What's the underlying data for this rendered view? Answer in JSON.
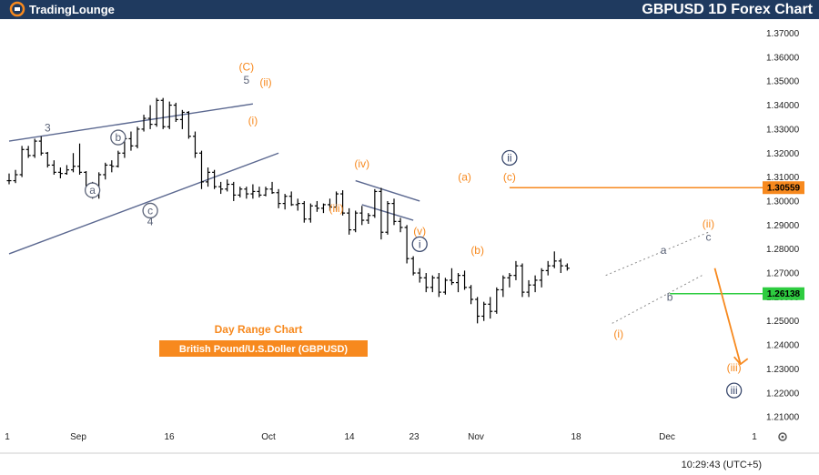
{
  "header": {
    "logo_text": "TradingLounge",
    "title": "GBPUSD 1D Forex Chart"
  },
  "labels": {
    "chart_subtitle": "Day Range Chart",
    "instrument_badge": "British Pound/U.S.Doller (GBPUSD)"
  },
  "footer": {
    "clock": "10:29:43 (UTC+5)",
    "settings_icon": "gear-icon"
  },
  "colors": {
    "header_bg": "#1f3a5f",
    "orange": "#f7891e",
    "green": "#2ecc40",
    "gray_wave": "#5b6378",
    "channel": "#5b6890",
    "candle": "#000000"
  },
  "chart_data": {
    "type": "ohlc",
    "y_ticks": [
      "1.37000",
      "1.36000",
      "1.35000",
      "1.34000",
      "1.33000",
      "1.32000",
      "1.31000",
      "1.30000",
      "1.29000",
      "1.28000",
      "1.27000",
      "1.26000",
      "1.25000",
      "1.24000",
      "1.23000",
      "1.22000",
      "1.21000"
    ],
    "ylim": [
      1.2055,
      1.3755
    ],
    "x_ticks": [
      "1",
      "Sep",
      "16",
      "Oct",
      "14",
      "23",
      "Nov",
      "18",
      "Dec",
      "1"
    ],
    "price_levels": [
      {
        "name": "resistance",
        "value": "1.30559",
        "color": "#f7891e"
      },
      {
        "name": "support",
        "value": "1.26138",
        "color": "#2ecc40"
      }
    ],
    "series": [
      {
        "name": "",
        "ohlc": [
          [
            1.3085,
            1.3115,
            1.307,
            1.3085
          ],
          [
            1.3085,
            1.313,
            1.3075,
            1.311
          ],
          [
            1.311,
            1.323,
            1.31,
            1.3215
          ],
          [
            1.3215,
            1.323,
            1.318,
            1.319
          ],
          [
            1.319,
            1.326,
            1.318,
            1.325
          ],
          [
            1.325,
            1.327,
            1.319,
            1.32
          ],
          [
            1.32,
            1.3205,
            1.314,
            1.315
          ],
          [
            1.315,
            1.317,
            1.311,
            1.312
          ],
          [
            1.312,
            1.314,
            1.3095,
            1.3115
          ],
          [
            1.3115,
            1.315,
            1.311,
            1.313
          ],
          [
            1.313,
            1.32,
            1.312,
            1.3145
          ],
          [
            1.3145,
            1.324,
            1.311,
            1.312
          ],
          [
            1.312,
            1.3125,
            1.305,
            1.306
          ],
          [
            1.306,
            1.308,
            1.301,
            1.3035
          ],
          [
            1.3035,
            1.312,
            1.301,
            1.311
          ],
          [
            1.311,
            1.316,
            1.309,
            1.315
          ],
          [
            1.315,
            1.317,
            1.312,
            1.3145
          ],
          [
            1.3145,
            1.321,
            1.314,
            1.32
          ],
          [
            1.32,
            1.328,
            1.318,
            1.326
          ],
          [
            1.326,
            1.329,
            1.321,
            1.323
          ],
          [
            1.323,
            1.331,
            1.322,
            1.33
          ],
          [
            1.33,
            1.336,
            1.329,
            1.3345
          ],
          [
            1.3345,
            1.34,
            1.33,
            1.332
          ],
          [
            1.332,
            1.343,
            1.331,
            1.342
          ],
          [
            1.342,
            1.343,
            1.33,
            1.331
          ],
          [
            1.331,
            1.3415,
            1.33,
            1.34
          ],
          [
            1.34,
            1.341,
            1.333,
            1.334
          ],
          [
            1.334,
            1.338,
            1.33,
            1.337
          ],
          [
            1.337,
            1.3375,
            1.326,
            1.327
          ],
          [
            1.327,
            1.329,
            1.318,
            1.32
          ],
          [
            1.32,
            1.321,
            1.305,
            1.308
          ],
          [
            1.308,
            1.314,
            1.306,
            1.312
          ],
          [
            1.312,
            1.313,
            1.305,
            1.306
          ],
          [
            1.306,
            1.308,
            1.303,
            1.305
          ],
          [
            1.305,
            1.309,
            1.304,
            1.307
          ],
          [
            1.307,
            1.308,
            1.3,
            1.3025
          ],
          [
            1.3025,
            1.306,
            1.3015,
            1.305
          ],
          [
            1.305,
            1.306,
            1.301,
            1.303
          ],
          [
            1.303,
            1.307,
            1.301,
            1.304
          ],
          [
            1.304,
            1.306,
            1.3015,
            1.3025
          ],
          [
            1.3025,
            1.306,
            1.302,
            1.305
          ],
          [
            1.305,
            1.308,
            1.303,
            1.3035
          ],
          [
            1.3035,
            1.305,
            1.297,
            1.299
          ],
          [
            1.299,
            1.303,
            1.2965,
            1.302
          ],
          [
            1.302,
            1.304,
            1.298,
            1.2985
          ],
          [
            1.2985,
            1.301,
            1.296,
            1.299
          ],
          [
            1.299,
            1.3,
            1.291,
            1.2925
          ],
          [
            1.2925,
            1.299,
            1.291,
            1.298
          ],
          [
            1.298,
            1.3,
            1.2955,
            1.297
          ],
          [
            1.297,
            1.299,
            1.295,
            1.2985
          ],
          [
            1.2985,
            1.301,
            1.296,
            1.2975
          ],
          [
            1.2975,
            1.304,
            1.296,
            1.303
          ],
          [
            1.303,
            1.3045,
            1.294,
            1.295
          ],
          [
            1.295,
            1.297,
            1.286,
            1.288
          ],
          [
            1.288,
            1.296,
            1.287,
            1.295
          ],
          [
            1.295,
            1.298,
            1.29,
            1.292
          ],
          [
            1.292,
            1.295,
            1.2905,
            1.294
          ],
          [
            1.294,
            1.305,
            1.293,
            1.304
          ],
          [
            1.304,
            1.3055,
            1.284,
            1.287
          ],
          [
            1.287,
            1.3,
            1.286,
            1.299
          ],
          [
            1.299,
            1.301,
            1.29,
            1.2915
          ],
          [
            1.2915,
            1.293,
            1.287,
            1.289
          ],
          [
            1.289,
            1.29,
            1.274,
            1.276
          ],
          [
            1.276,
            1.277,
            1.269,
            1.27
          ],
          [
            1.27,
            1.272,
            1.266,
            1.268
          ],
          [
            1.268,
            1.27,
            1.262,
            1.264
          ],
          [
            1.264,
            1.269,
            1.262,
            1.268
          ],
          [
            1.268,
            1.27,
            1.26,
            1.262
          ],
          [
            1.262,
            1.268,
            1.261,
            1.267
          ],
          [
            1.267,
            1.272,
            1.265,
            1.266
          ],
          [
            1.266,
            1.27,
            1.262,
            1.269
          ],
          [
            1.269,
            1.271,
            1.263,
            1.264
          ],
          [
            1.264,
            1.265,
            1.257,
            1.259
          ],
          [
            1.259,
            1.26,
            1.249,
            1.252
          ],
          [
            1.252,
            1.258,
            1.25,
            1.257
          ],
          [
            1.257,
            1.26,
            1.251,
            1.254
          ],
          [
            1.254,
            1.264,
            1.253,
            1.263
          ],
          [
            1.263,
            1.269,
            1.26,
            1.268
          ],
          [
            1.268,
            1.27,
            1.264,
            1.269
          ],
          [
            1.269,
            1.275,
            1.267,
            1.273
          ],
          [
            1.273,
            1.274,
            1.26,
            1.262
          ],
          [
            1.262,
            1.267,
            1.26,
            1.265
          ],
          [
            1.265,
            1.269,
            1.262,
            1.267
          ],
          [
            1.267,
            1.272,
            1.264,
            1.271
          ],
          [
            1.271,
            1.275,
            1.269,
            1.273
          ],
          [
            1.273,
            1.279,
            1.272,
            1.275
          ],
          [
            1.275,
            1.276,
            1.27,
            1.273
          ],
          [
            1.273,
            1.274,
            1.271,
            1.272
          ]
        ]
      }
    ],
    "trendlines": [
      {
        "name": "upper-channel-line",
        "points": [
          [
            0,
            1.325
          ],
          [
            38,
            1.3405
          ]
        ],
        "color": "#5b6890"
      },
      {
        "name": "lower-channel-line",
        "points": [
          [
            0,
            1.278
          ],
          [
            42,
            1.32
          ]
        ],
        "color": "#5b6890"
      },
      {
        "name": "triangle-upper-line",
        "points": [
          [
            54,
            1.3085
          ],
          [
            64,
            1.3
          ]
        ],
        "color": "#5b6890"
      },
      {
        "name": "triangle-lower-line",
        "points": [
          [
            55,
            1.2985
          ],
          [
            63,
            1.292
          ]
        ],
        "color": "#5b6890"
      },
      {
        "name": "mini-channel-upper-dotted",
        "points": [
          [
            93,
            1.269
          ],
          [
            109,
            1.287
          ]
        ],
        "color": "#8a8a8a"
      },
      {
        "name": "mini-channel-lower-dotted",
        "points": [
          [
            94,
            1.249
          ],
          [
            108,
            1.269
          ]
        ],
        "color": "#8a8a8a"
      }
    ],
    "projection": {
      "name": "projection-arrow",
      "points": [
        [
          110,
          1.272
        ],
        [
          114,
          1.232
        ]
      ],
      "color": "#f7891e"
    },
    "wave_labels": [
      {
        "text": "3",
        "i": 6,
        "price": 1.329,
        "style": "plain-gray"
      },
      {
        "text": "a",
        "i": 13,
        "price": 1.303,
        "style": "circled-gray"
      },
      {
        "text": "b",
        "i": 17,
        "price": 1.325,
        "style": "circled-gray"
      },
      {
        "text": "c",
        "i": 22,
        "price": 1.2945,
        "style": "circled-gray"
      },
      {
        "text": "4",
        "i": 22,
        "price": 1.29,
        "style": "plain-gray"
      },
      {
        "text": "5",
        "i": 37,
        "price": 1.349,
        "style": "plain-gray"
      },
      {
        "text": "(C)",
        "i": 37,
        "price": 1.3545,
        "style": "orange"
      },
      {
        "text": "(ii)",
        "i": 40,
        "price": 1.348,
        "style": "orange"
      },
      {
        "text": "(i)",
        "i": 38,
        "price": 1.332,
        "style": "orange"
      },
      {
        "text": "(iii)",
        "i": 51,
        "price": 1.2955,
        "style": "orange"
      },
      {
        "text": "(iv)",
        "i": 55,
        "price": 1.314,
        "style": "orange"
      },
      {
        "text": "(v)",
        "i": 64,
        "price": 1.286,
        "style": "orange"
      },
      {
        "text": "i",
        "i": 64,
        "price": 1.2805,
        "style": "circled-navy"
      },
      {
        "text": "(a)",
        "i": 71,
        "price": 1.3085,
        "style": "orange"
      },
      {
        "text": "(b)",
        "i": 73,
        "price": 1.278,
        "style": "orange"
      },
      {
        "text": "ii",
        "i": 78,
        "price": 1.3165,
        "style": "circled-navy"
      },
      {
        "text": "(c)",
        "i": 78,
        "price": 1.3085,
        "style": "orange"
      },
      {
        "text": "(i)",
        "i": 95,
        "price": 1.243,
        "style": "orange"
      },
      {
        "text": "a",
        "i": 102,
        "price": 1.278,
        "style": "plain-gray"
      },
      {
        "text": "b",
        "i": 103,
        "price": 1.2585,
        "style": "plain-gray"
      },
      {
        "text": "(ii)",
        "i": 109,
        "price": 1.289,
        "style": "orange"
      },
      {
        "text": "c",
        "i": 109,
        "price": 1.2835,
        "style": "plain-gray"
      },
      {
        "text": "(iii)",
        "i": 113,
        "price": 1.229,
        "style": "orange"
      },
      {
        "text": "iii",
        "i": 113,
        "price": 1.2195,
        "style": "circled-navy"
      }
    ]
  }
}
